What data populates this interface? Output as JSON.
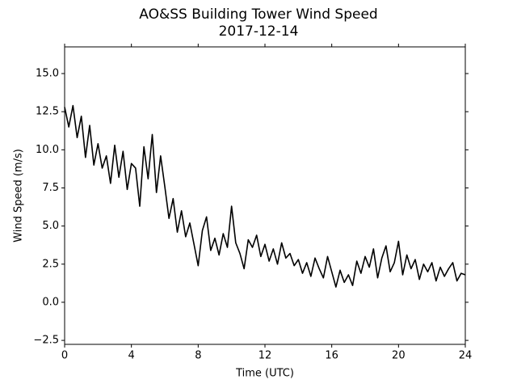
{
  "chart_data": {
    "type": "line",
    "title": "AO&SS Building Tower Wind Speed",
    "subtitle": "2017-12-14",
    "x_label": "Time (UTC)",
    "y_label": "Wind Speed (m/s)",
    "xlim": [
      0,
      24
    ],
    "xticks": [
      0,
      4,
      8,
      12,
      16,
      20,
      24
    ],
    "ylim": [
      -2.76,
      16.75
    ],
    "yticks": [
      {
        "value": -2.5,
        "label": "−2.5"
      },
      {
        "value": 0,
        "label": "0.0"
      },
      2.5,
      {
        "value": 5,
        "label": "5.0"
      },
      7.5,
      {
        "value": 10,
        "label": "10.0"
      },
      12.5,
      {
        "value": 15,
        "label": "15.0"
      }
    ],
    "x": [
      0,
      0.25,
      0.5,
      0.75,
      1,
      1.25,
      1.5,
      1.75,
      2,
      2.25,
      2.5,
      2.75,
      3,
      3.25,
      3.5,
      3.75,
      4,
      4.25,
      4.5,
      4.75,
      5,
      5.25,
      5.5,
      5.75,
      6,
      6.25,
      6.5,
      6.75,
      7,
      7.25,
      7.5,
      7.75,
      8,
      8.25,
      8.5,
      8.75,
      9,
      9.25,
      9.5,
      9.75,
      10,
      10.25,
      10.5,
      10.75,
      11,
      11.25,
      11.5,
      11.75,
      12,
      12.25,
      12.5,
      12.75,
      13,
      13.25,
      13.5,
      13.75,
      14,
      14.25,
      14.5,
      14.75,
      15,
      15.25,
      15.5,
      15.75,
      16,
      16.25,
      16.5,
      16.75,
      17,
      17.25,
      17.5,
      17.75,
      18,
      18.25,
      18.5,
      18.75,
      19,
      19.25,
      19.5,
      19.75,
      20,
      20.25,
      20.5,
      20.75,
      21,
      21.25,
      21.5,
      21.75,
      22,
      22.25,
      22.5,
      22.75,
      23,
      23.25,
      23.5,
      23.75,
      24
    ],
    "series": [
      {
        "color": "#000000",
        "values": [
          12.8,
          11.5,
          12.9,
          10.8,
          12.2,
          9.5,
          11.6,
          9.0,
          10.4,
          8.8,
          9.6,
          7.8,
          10.3,
          8.2,
          9.9,
          7.4,
          9.1,
          8.8,
          6.3,
          10.2,
          8.1,
          11.0,
          7.2,
          9.6,
          7.6,
          5.5,
          6.8,
          4.6,
          6.0,
          4.3,
          5.2,
          3.8,
          2.4,
          4.7,
          5.6,
          3.4,
          4.2,
          3.1,
          4.5,
          3.6,
          6.3,
          3.9,
          3.2,
          2.2,
          4.1,
          3.6,
          4.4,
          3.0,
          3.8,
          2.7,
          3.5,
          2.5,
          3.9,
          2.9,
          3.2,
          2.4,
          2.8,
          1.9,
          2.6,
          1.7,
          2.9,
          2.2,
          1.6,
          3.0,
          2.0,
          1.0,
          2.1,
          1.3,
          1.8,
          1.1,
          2.7,
          1.9,
          3.0,
          2.3,
          3.5,
          1.6,
          2.9,
          3.7,
          2.0,
          2.6,
          4.0,
          1.8,
          3.1,
          2.2,
          2.8,
          1.5,
          2.5,
          2.0,
          2.6,
          1.4,
          2.3,
          1.7,
          2.2,
          2.6,
          1.4,
          1.9,
          1.8
        ]
      }
    ]
  }
}
